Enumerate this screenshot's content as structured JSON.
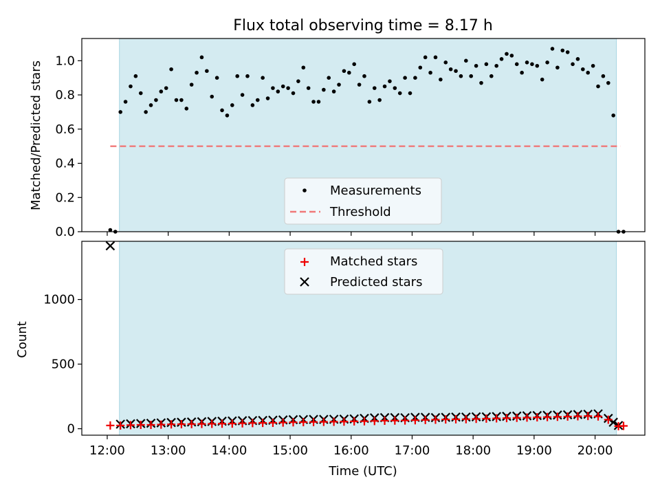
{
  "chart_data": [
    {
      "type": "scatter",
      "title": "Flux total observing time = 8.17 h",
      "xlabel": "",
      "ylabel": "Matched/Predicted stars",
      "xlim": [
        "11:35",
        "20:49"
      ],
      "ylim": [
        0,
        1.13
      ],
      "xticks": [
        "12:00",
        "13:00",
        "14:00",
        "15:00",
        "16:00",
        "17:00",
        "18:00",
        "19:00",
        "20:00"
      ],
      "yticks": [
        0.0,
        0.2,
        0.4,
        0.6,
        0.8,
        1.0
      ],
      "ytick_labels": [
        "0.0",
        "0.2",
        "0.4",
        "0.6",
        "0.8",
        "1.0"
      ],
      "legend": {
        "placement": "lower-center",
        "entries": [
          "Measurements",
          "Threshold"
        ]
      },
      "observing_window": {
        "start": "12:12",
        "end": "20:21",
        "color": "#d4ebf1"
      },
      "threshold": {
        "name": "Threshold",
        "value": 0.5,
        "x_start": "12:03",
        "x_end": "20:25",
        "color": "#f07878"
      },
      "series": [
        {
          "name": "Measurements",
          "color": "#000000",
          "x": [
            "12:03",
            "12:08",
            "12:13",
            "12:18",
            "12:23",
            "12:28",
            "12:33",
            "12:38",
            "12:43",
            "12:48",
            "12:53",
            "12:58",
            "13:03",
            "13:08",
            "13:13",
            "13:18",
            "13:23",
            "13:28",
            "13:33",
            "13:38",
            "13:43",
            "13:48",
            "13:53",
            "13:58",
            "14:03",
            "14:08",
            "14:13",
            "14:18",
            "14:23",
            "14:28",
            "14:33",
            "14:38",
            "14:43",
            "14:48",
            "14:53",
            "14:58",
            "15:03",
            "15:08",
            "15:13",
            "15:18",
            "15:23",
            "15:28",
            "15:33",
            "15:38",
            "15:43",
            "15:48",
            "15:53",
            "15:58",
            "16:03",
            "16:08",
            "16:13",
            "16:18",
            "16:23",
            "16:28",
            "16:33",
            "16:38",
            "16:43",
            "16:48",
            "16:53",
            "16:58",
            "17:03",
            "17:08",
            "17:13",
            "17:18",
            "17:23",
            "17:28",
            "17:33",
            "17:38",
            "17:43",
            "17:48",
            "17:53",
            "17:58",
            "18:03",
            "18:08",
            "18:13",
            "18:18",
            "18:23",
            "18:28",
            "18:33",
            "18:38",
            "18:43",
            "18:48",
            "18:53",
            "18:58",
            "19:03",
            "19:08",
            "19:13",
            "19:18",
            "19:23",
            "19:28",
            "19:33",
            "19:38",
            "19:43",
            "19:48",
            "19:53",
            "19:58",
            "20:03",
            "20:08",
            "20:13",
            "20:18",
            "20:23",
            "20:28"
          ],
          "values": [
            0.01,
            0.0,
            0.7,
            0.76,
            0.85,
            0.91,
            0.81,
            0.7,
            0.74,
            0.77,
            0.82,
            0.84,
            0.95,
            0.77,
            0.77,
            0.72,
            0.86,
            0.93,
            1.02,
            0.94,
            0.79,
            0.9,
            0.71,
            0.68,
            0.74,
            0.91,
            0.8,
            0.91,
            0.74,
            0.77,
            0.9,
            0.78,
            0.84,
            0.82,
            0.85,
            0.84,
            0.81,
            0.88,
            0.96,
            0.84,
            0.76,
            0.76,
            0.83,
            0.9,
            0.82,
            0.86,
            0.94,
            0.93,
            0.98,
            0.86,
            0.91,
            0.76,
            0.84,
            0.77,
            0.85,
            0.88,
            0.84,
            0.81,
            0.9,
            0.81,
            0.9,
            0.96,
            1.02,
            0.93,
            1.02,
            0.89,
            0.99,
            0.95,
            0.94,
            0.91,
            1.0,
            0.91,
            0.97,
            0.87,
            0.98,
            0.91,
            0.97,
            1.01,
            1.04,
            1.03,
            0.98,
            0.93,
            0.99,
            0.98,
            0.97,
            0.89,
            0.99,
            1.07,
            0.96,
            1.06,
            1.05,
            0.98,
            1.01,
            0.95,
            0.93,
            0.97,
            0.85,
            0.91,
            0.87,
            0.68,
            0.0,
            0.0
          ]
        }
      ]
    },
    {
      "type": "scatter",
      "title": "",
      "xlabel": "Time (UTC)",
      "ylabel": "Count",
      "xlim": [
        "11:35",
        "20:49"
      ],
      "ylim": [
        -50,
        1450
      ],
      "xticks": [
        "12:00",
        "13:00",
        "14:00",
        "15:00",
        "16:00",
        "17:00",
        "18:00",
        "19:00",
        "20:00"
      ],
      "yticks": [
        0,
        500,
        1000
      ],
      "ytick_labels": [
        "0",
        "500",
        "1000"
      ],
      "legend": {
        "placement": "upper-center",
        "entries": [
          "Matched stars",
          "Predicted stars"
        ]
      },
      "observing_window": {
        "start": "12:12",
        "end": "20:21",
        "color": "#d4ebf1"
      },
      "series": [
        {
          "name": "Matched stars",
          "marker": "plus",
          "color": "#ee0000",
          "x": [
            "12:03",
            "12:13",
            "12:23",
            "12:33",
            "12:43",
            "12:53",
            "13:03",
            "13:13",
            "13:23",
            "13:33",
            "13:43",
            "13:53",
            "14:03",
            "14:13",
            "14:23",
            "14:33",
            "14:43",
            "14:53",
            "15:03",
            "15:13",
            "15:23",
            "15:33",
            "15:43",
            "15:53",
            "16:03",
            "16:13",
            "16:23",
            "16:33",
            "16:43",
            "16:53",
            "17:03",
            "17:13",
            "17:23",
            "17:33",
            "17:43",
            "17:53",
            "18:03",
            "18:13",
            "18:23",
            "18:33",
            "18:43",
            "18:53",
            "19:03",
            "19:13",
            "19:23",
            "19:33",
            "19:43",
            "19:53",
            "20:03",
            "20:13",
            "20:23",
            "20:28"
          ],
          "values": [
            25,
            25,
            28,
            30,
            30,
            32,
            34,
            35,
            36,
            37,
            38,
            39,
            40,
            42,
            44,
            45,
            46,
            48,
            50,
            51,
            52,
            53,
            54,
            55,
            57,
            58,
            60,
            62,
            63,
            64,
            66,
            68,
            70,
            72,
            73,
            74,
            76,
            78,
            80,
            82,
            84,
            86,
            88,
            90,
            92,
            94,
            96,
            98,
            95,
            70,
            20,
            22
          ]
        },
        {
          "name": "Predicted stars",
          "marker": "x",
          "color": "#000000",
          "x": [
            "12:03",
            "12:13",
            "12:23",
            "12:33",
            "12:43",
            "12:53",
            "13:03",
            "13:13",
            "13:23",
            "13:33",
            "13:43",
            "13:53",
            "14:03",
            "14:13",
            "14:23",
            "14:33",
            "14:43",
            "14:53",
            "15:03",
            "15:13",
            "15:23",
            "15:33",
            "15:43",
            "15:53",
            "16:03",
            "16:13",
            "16:23",
            "16:33",
            "16:43",
            "16:53",
            "17:03",
            "17:13",
            "17:23",
            "17:33",
            "17:43",
            "17:53",
            "18:03",
            "18:13",
            "18:23",
            "18:33",
            "18:43",
            "18:53",
            "19:03",
            "19:13",
            "19:23",
            "19:33",
            "19:43",
            "19:53",
            "20:03",
            "20:13",
            "20:18",
            "20:23"
          ],
          "values": [
            1415,
            35,
            38,
            40,
            42,
            45,
            48,
            50,
            52,
            54,
            56,
            58,
            60,
            62,
            63,
            64,
            66,
            68,
            70,
            71,
            72,
            72,
            73,
            74,
            76,
            80,
            84,
            86,
            86,
            85,
            88,
            88,
            86,
            88,
            90,
            90,
            92,
            92,
            94,
            96,
            98,
            100,
            102,
            104,
            106,
            108,
            110,
            112,
            115,
            80,
            50,
            25
          ]
        }
      ]
    }
  ]
}
